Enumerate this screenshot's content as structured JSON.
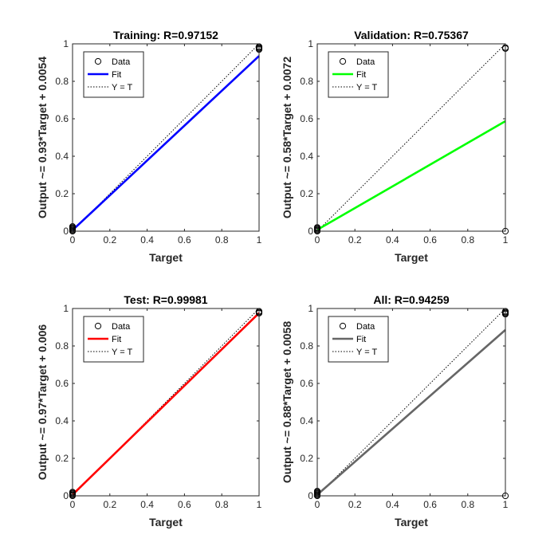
{
  "chart_data": [
    {
      "type": "scatter",
      "title": "Training: R=0.97152",
      "xlabel": "Target",
      "ylabel": "Output ~= 0.93*Target + 0.0054",
      "xlim": [
        0,
        1
      ],
      "ylim": [
        0,
        1
      ],
      "xticks": [
        "0",
        "0.2",
        "0.4",
        "0.6",
        "0.8",
        "1"
      ],
      "yticks": [
        "0",
        "0.2",
        "0.4",
        "0.6",
        "0.8",
        "1"
      ],
      "grid": false,
      "legend": {
        "placement": "top-left",
        "entries": [
          "Data",
          "Fit",
          "Y = T"
        ]
      },
      "fit": {
        "slope": 0.93,
        "intercept": 0.0054,
        "color": "#0000ff"
      },
      "series": [
        {
          "name": "Data",
          "x": [
            0,
            0,
            0,
            0,
            0,
            0,
            1,
            1,
            1,
            1
          ],
          "y": [
            0.0,
            0.005,
            0.01,
            0.015,
            0.02,
            0.025,
            0.97,
            0.975,
            0.98,
            0.985
          ]
        }
      ]
    },
    {
      "type": "scatter",
      "title": "Validation: R=0.75367",
      "xlabel": "Target",
      "ylabel": "Output ~= 0.58*Target + 0.0072",
      "xlim": [
        0,
        1
      ],
      "ylim": [
        0,
        1
      ],
      "xticks": [
        "0",
        "0.2",
        "0.4",
        "0.6",
        "0.8",
        "1"
      ],
      "yticks": [
        "0",
        "0.2",
        "0.4",
        "0.6",
        "0.8",
        "1"
      ],
      "grid": false,
      "legend": {
        "placement": "top-left",
        "entries": [
          "Data",
          "Fit",
          "Y = T"
        ]
      },
      "fit": {
        "slope": 0.58,
        "intercept": 0.0072,
        "color": "#00ff00"
      },
      "series": [
        {
          "name": "Data",
          "x": [
            0,
            0,
            0,
            0,
            0,
            1,
            1,
            1
          ],
          "y": [
            0.0,
            0.005,
            0.01,
            0.015,
            0.02,
            0.0,
            0.975,
            0.98
          ]
        }
      ]
    },
    {
      "type": "scatter",
      "title": "Test: R=0.99981",
      "xlabel": "Target",
      "ylabel": "Output ~= 0.97*Target + 0.006",
      "xlim": [
        0,
        1
      ],
      "ylim": [
        0,
        1
      ],
      "xticks": [
        "0",
        "0.2",
        "0.4",
        "0.6",
        "0.8",
        "1"
      ],
      "yticks": [
        "0",
        "0.2",
        "0.4",
        "0.6",
        "0.8",
        "1"
      ],
      "grid": false,
      "legend": {
        "placement": "top-left",
        "entries": [
          "Data",
          "Fit",
          "Y = T"
        ]
      },
      "fit": {
        "slope": 0.97,
        "intercept": 0.006,
        "color": "#ff0000"
      },
      "series": [
        {
          "name": "Data",
          "x": [
            0,
            0,
            0,
            0,
            0,
            1,
            1,
            1
          ],
          "y": [
            0.0,
            0.005,
            0.01,
            0.015,
            0.02,
            0.975,
            0.98,
            0.985
          ]
        }
      ]
    },
    {
      "type": "scatter",
      "title": "All: R=0.94259",
      "xlabel": "Target",
      "ylabel": "Output ~= 0.88*Target + 0.0058",
      "xlim": [
        0,
        1
      ],
      "ylim": [
        0,
        1
      ],
      "xticks": [
        "0",
        "0.2",
        "0.4",
        "0.6",
        "0.8",
        "1"
      ],
      "yticks": [
        "0",
        "0.2",
        "0.4",
        "0.6",
        "0.8",
        "1"
      ],
      "grid": false,
      "legend": {
        "placement": "top-left",
        "entries": [
          "Data",
          "Fit",
          "Y = T"
        ]
      },
      "fit": {
        "slope": 0.88,
        "intercept": 0.0058,
        "color": "#666666"
      },
      "series": [
        {
          "name": "Data",
          "x": [
            0,
            0,
            0,
            0,
            0,
            0,
            1,
            1,
            1,
            1,
            1
          ],
          "y": [
            0.0,
            0.005,
            0.01,
            0.015,
            0.02,
            0.025,
            0.0,
            0.97,
            0.975,
            0.98,
            0.985
          ]
        }
      ]
    }
  ]
}
